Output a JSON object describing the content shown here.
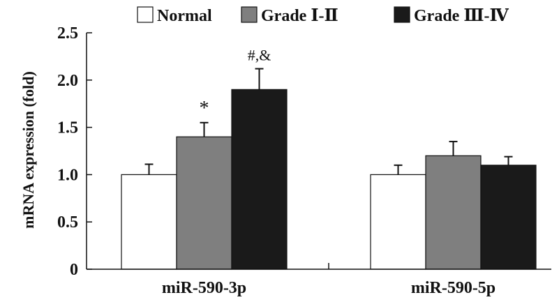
{
  "chart_data": {
    "type": "bar",
    "title": "",
    "xlabel": "",
    "ylabel": "mRNA expression (fold)",
    "ylim": [
      0,
      2.5
    ],
    "yticks": [
      "0",
      "0.5",
      "1.0",
      "1.5",
      "2.0",
      "2.5"
    ],
    "categories": [
      "miR-590-3p",
      "miR-590-5p"
    ],
    "series": [
      {
        "name": "Normal",
        "color": "#ffffff",
        "values": [
          1.0,
          1.0
        ],
        "errors": [
          0.11,
          0.1
        ]
      },
      {
        "name": "Grade Ⅰ-Ⅱ",
        "color": "#7f7f7f",
        "values": [
          1.4,
          1.2
        ],
        "errors": [
          0.15,
          0.15
        ]
      },
      {
        "name": "Grade Ⅲ-Ⅳ",
        "color": "#1a1a1a",
        "values": [
          1.9,
          1.1
        ],
        "errors": [
          0.22,
          0.09
        ]
      }
    ],
    "annotations": [
      {
        "text": "*",
        "series": 1,
        "category": 0
      },
      {
        "text": "#,&",
        "series": 2,
        "category": 0
      }
    ],
    "legend_position": "top",
    "grid": false
  }
}
